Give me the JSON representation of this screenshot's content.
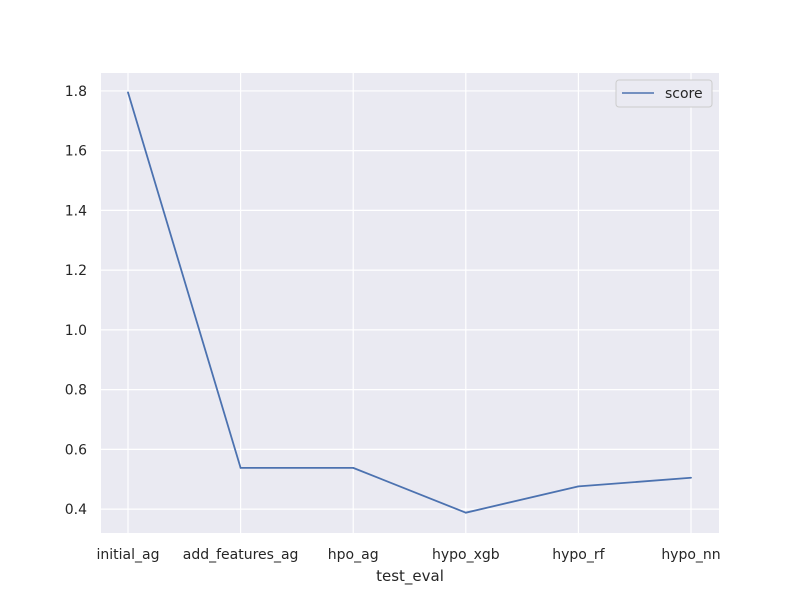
{
  "chart_data": {
    "type": "line",
    "xlabel": "test_eval",
    "ylabel": "",
    "categories": [
      "initial_ag",
      "add_features_ag",
      "hpo_ag",
      "hypo_xgb",
      "hypo_rf",
      "hypo_nn"
    ],
    "series": [
      {
        "name": "score",
        "values": [
          1.795,
          0.538,
          0.538,
          0.388,
          0.476,
          0.505
        ],
        "color": "#4c72b0"
      }
    ],
    "ylim": [
      0.32,
      1.86
    ],
    "yticks": [
      "0.4",
      "0.6",
      "0.8",
      "1.0",
      "1.2",
      "1.4",
      "1.6",
      "1.8"
    ],
    "grid": true,
    "legend_position": "top-right",
    "background_color": "#eaeaf2",
    "grid_color": "#ffffff"
  }
}
